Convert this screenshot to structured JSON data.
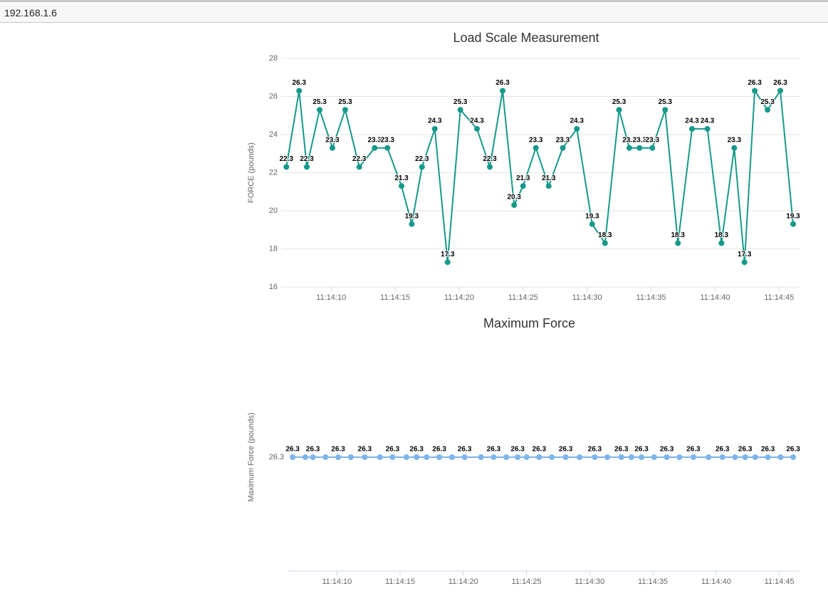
{
  "address_bar": "192.168.1.6",
  "chart_data": [
    {
      "type": "line",
      "title": "Load Scale Measurement",
      "y_label": "FORCE (pounds)",
      "color": "#15998a",
      "grid": true,
      "data_labels": true,
      "x": [
        6.5,
        7.5,
        8.1,
        9.1,
        10.1,
        11.1,
        12.2,
        13.4,
        14.4,
        15.5,
        16.3,
        17.1,
        18.1,
        19.1,
        20.1,
        21.4,
        22.4,
        23.4,
        24.3,
        25.0,
        26.0,
        27.0,
        28.1,
        29.2,
        30.4,
        31.4,
        32.5,
        33.3,
        34.1,
        35.1,
        36.1,
        37.1,
        38.2,
        39.4,
        40.5,
        41.5,
        42.3,
        43.1,
        44.1,
        45.1,
        46.1
      ],
      "values": [
        22.3,
        26.3,
        22.3,
        25.3,
        23.3,
        25.3,
        22.3,
        23.3,
        23.3,
        21.3,
        19.3,
        22.3,
        24.3,
        17.3,
        25.3,
        24.3,
        22.3,
        26.3,
        20.3,
        21.3,
        23.3,
        21.3,
        23.3,
        24.3,
        19.3,
        18.3,
        25.3,
        23.3,
        23.3,
        23.3,
        25.3,
        18.3,
        24.3,
        24.3,
        18.3,
        23.3,
        17.3,
        26.3,
        25.3,
        26.3,
        19.3
      ],
      "xlim": [
        6.1,
        46.6
      ],
      "ylim": [
        16,
        28
      ],
      "xticks": [
        {
          "value": 10,
          "label": "11:14:10"
        },
        {
          "value": 15,
          "label": "11:14:15"
        },
        {
          "value": 20,
          "label": "11:14:20"
        },
        {
          "value": 25,
          "label": "11:14:25"
        },
        {
          "value": 30,
          "label": "11:14:30"
        },
        {
          "value": 35,
          "label": "11:14:35"
        },
        {
          "value": 40,
          "label": "11:14:40"
        },
        {
          "value": 45,
          "label": "11:14:45"
        }
      ],
      "yticks": [
        16,
        18,
        20,
        22,
        24,
        26,
        28
      ]
    },
    {
      "type": "line",
      "title": "Maximum Force",
      "y_label": "Maximum Force (pounds)",
      "color": "#7cb5ec",
      "grid": false,
      "data_labels": true,
      "x": [
        6.5,
        7.5,
        8.1,
        9.1,
        10.1,
        11.1,
        12.2,
        13.4,
        14.4,
        15.5,
        16.3,
        17.1,
        18.1,
        19.1,
        20.1,
        21.4,
        22.4,
        23.4,
        24.3,
        25.0,
        26.0,
        27.0,
        28.1,
        29.2,
        30.4,
        31.4,
        32.5,
        33.3,
        34.1,
        35.1,
        36.1,
        37.1,
        38.2,
        39.4,
        40.5,
        41.5,
        42.3,
        43.1,
        44.1,
        45.1,
        46.1
      ],
      "values": [
        26.3,
        26.3,
        26.3,
        26.3,
        26.3,
        26.3,
        26.3,
        26.3,
        26.3,
        26.3,
        26.3,
        26.3,
        26.3,
        26.3,
        26.3,
        26.3,
        26.3,
        26.3,
        26.3,
        26.3,
        26.3,
        26.3,
        26.3,
        26.3,
        26.3,
        26.3,
        26.3,
        26.3,
        26.3,
        26.3,
        26.3,
        26.3,
        26.3,
        26.3,
        26.3,
        26.3,
        26.3,
        26.3,
        26.3,
        26.3,
        26.3
      ],
      "xlim": [
        6.1,
        46.6
      ],
      "ylim": [
        25.3,
        27.3
      ],
      "xticks": [
        {
          "value": 10,
          "label": "11:14:10"
        },
        {
          "value": 15,
          "label": "11:14:15"
        },
        {
          "value": 20,
          "label": "11:14:20"
        },
        {
          "value": 25,
          "label": "11:14:25"
        },
        {
          "value": 30,
          "label": "11:14:30"
        },
        {
          "value": 35,
          "label": "11:14:35"
        },
        {
          "value": 40,
          "label": "11:14:40"
        },
        {
          "value": 45,
          "label": "11:14:45"
        }
      ],
      "yticks": [
        26.3
      ]
    }
  ]
}
